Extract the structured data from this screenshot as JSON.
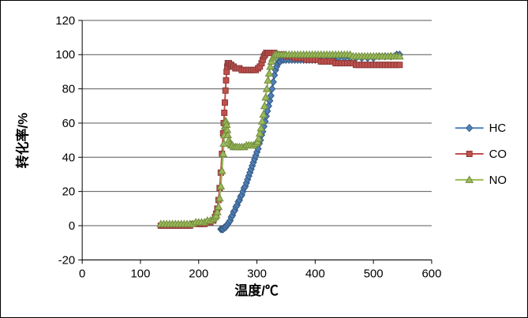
{
  "frame": {
    "background": "#FFFFFF",
    "border_color": "#000000"
  },
  "chart_data": {
    "type": "line",
    "title": "",
    "xlabel": "温度/℃",
    "ylabel": "转化率/%",
    "xlim": [
      0,
      600
    ],
    "ylim": [
      -20,
      120
    ],
    "xtick_step": 100,
    "ytick_step": 20,
    "grid": "horizontal",
    "gridline_color": "#595959",
    "axis_color": "#000000",
    "legend_position": "right",
    "series": [
      {
        "name": "HC",
        "color": "#4F81BD",
        "edge": "#36597F",
        "marker": "diamond",
        "points": [
          [
            238,
            -2
          ],
          [
            240,
            -2
          ],
          [
            242,
            -2
          ],
          [
            244,
            -1
          ],
          [
            246,
            -1
          ],
          [
            248,
            0
          ],
          [
            250,
            1
          ],
          [
            252,
            2
          ],
          [
            254,
            3
          ],
          [
            256,
            5
          ],
          [
            258,
            6
          ],
          [
            260,
            8
          ],
          [
            262,
            9
          ],
          [
            264,
            11
          ],
          [
            266,
            12
          ],
          [
            268,
            14
          ],
          [
            270,
            15
          ],
          [
            272,
            17
          ],
          [
            274,
            18
          ],
          [
            276,
            20
          ],
          [
            278,
            22
          ],
          [
            280,
            23
          ],
          [
            282,
            25
          ],
          [
            284,
            27
          ],
          [
            286,
            29
          ],
          [
            288,
            31
          ],
          [
            290,
            33
          ],
          [
            292,
            35
          ],
          [
            294,
            37
          ],
          [
            296,
            39
          ],
          [
            298,
            41
          ],
          [
            300,
            43
          ],
          [
            302,
            45
          ],
          [
            304,
            48
          ],
          [
            306,
            50
          ],
          [
            308,
            53
          ],
          [
            310,
            55
          ],
          [
            312,
            58
          ],
          [
            314,
            61
          ],
          [
            316,
            64
          ],
          [
            318,
            67
          ],
          [
            320,
            70
          ],
          [
            322,
            73
          ],
          [
            324,
            76
          ],
          [
            326,
            80
          ],
          [
            328,
            84
          ],
          [
            330,
            88
          ],
          [
            332,
            91
          ],
          [
            334,
            93
          ],
          [
            336,
            95
          ],
          [
            338,
            96
          ],
          [
            340,
            96
          ],
          [
            343,
            97
          ],
          [
            346,
            97
          ],
          [
            350,
            97
          ],
          [
            355,
            97
          ],
          [
            360,
            97
          ],
          [
            365,
            97
          ],
          [
            370,
            97
          ],
          [
            375,
            97
          ],
          [
            380,
            97
          ],
          [
            385,
            97
          ],
          [
            390,
            97
          ],
          [
            395,
            97
          ],
          [
            400,
            97
          ],
          [
            410,
            97
          ],
          [
            420,
            97
          ],
          [
            430,
            97
          ],
          [
            440,
            98
          ],
          [
            450,
            98
          ],
          [
            460,
            98
          ],
          [
            470,
            98
          ],
          [
            480,
            98
          ],
          [
            490,
            98
          ],
          [
            500,
            98
          ],
          [
            510,
            99
          ],
          [
            520,
            99
          ],
          [
            530,
            99
          ],
          [
            540,
            100
          ],
          [
            545,
            100
          ]
        ]
      },
      {
        "name": "CO",
        "color": "#C0504D",
        "edge": "#8A3A38",
        "marker": "square",
        "points": [
          [
            135,
            0
          ],
          [
            140,
            0
          ],
          [
            145,
            0
          ],
          [
            150,
            0
          ],
          [
            155,
            0
          ],
          [
            160,
            0
          ],
          [
            165,
            0
          ],
          [
            170,
            0
          ],
          [
            175,
            0
          ],
          [
            180,
            0
          ],
          [
            185,
            0
          ],
          [
            190,
            1
          ],
          [
            195,
            1
          ],
          [
            200,
            1
          ],
          [
            205,
            1
          ],
          [
            210,
            1
          ],
          [
            215,
            2
          ],
          [
            220,
            2
          ],
          [
            225,
            3
          ],
          [
            228,
            5
          ],
          [
            230,
            7
          ],
          [
            232,
            10
          ],
          [
            234,
            15
          ],
          [
            236,
            22
          ],
          [
            238,
            31
          ],
          [
            240,
            42
          ],
          [
            242,
            54
          ],
          [
            243,
            60
          ],
          [
            244,
            66
          ],
          [
            245,
            72
          ],
          [
            246,
            79
          ],
          [
            247,
            85
          ],
          [
            248,
            90
          ],
          [
            249,
            93
          ],
          [
            250,
            95
          ],
          [
            252,
            95
          ],
          [
            254,
            94
          ],
          [
            256,
            94
          ],
          [
            258,
            93
          ],
          [
            260,
            93
          ],
          [
            263,
            92
          ],
          [
            266,
            92
          ],
          [
            270,
            92
          ],
          [
            274,
            91
          ],
          [
            278,
            91
          ],
          [
            282,
            91
          ],
          [
            286,
            91
          ],
          [
            290,
            91
          ],
          [
            294,
            91
          ],
          [
            298,
            91
          ],
          [
            302,
            92
          ],
          [
            305,
            93
          ],
          [
            308,
            95
          ],
          [
            310,
            97
          ],
          [
            312,
            99
          ],
          [
            314,
            100
          ],
          [
            316,
            101
          ],
          [
            318,
            101
          ],
          [
            320,
            101
          ],
          [
            323,
            101
          ],
          [
            326,
            101
          ],
          [
            330,
            101
          ],
          [
            334,
            100
          ],
          [
            338,
            100
          ],
          [
            342,
            100
          ],
          [
            346,
            100
          ],
          [
            350,
            99
          ],
          [
            355,
            99
          ],
          [
            360,
            99
          ],
          [
            365,
            98
          ],
          [
            370,
            98
          ],
          [
            375,
            98
          ],
          [
            380,
            98
          ],
          [
            385,
            97
          ],
          [
            390,
            97
          ],
          [
            395,
            97
          ],
          [
            400,
            97
          ],
          [
            405,
            97
          ],
          [
            410,
            96
          ],
          [
            415,
            96
          ],
          [
            420,
            96
          ],
          [
            425,
            96
          ],
          [
            430,
            96
          ],
          [
            435,
            95
          ],
          [
            440,
            95
          ],
          [
            445,
            95
          ],
          [
            450,
            95
          ],
          [
            455,
            95
          ],
          [
            460,
            95
          ],
          [
            465,
            95
          ],
          [
            470,
            94
          ],
          [
            475,
            94
          ],
          [
            480,
            94
          ],
          [
            485,
            94
          ],
          [
            490,
            94
          ],
          [
            495,
            94
          ],
          [
            500,
            94
          ],
          [
            505,
            94
          ],
          [
            510,
            94
          ],
          [
            515,
            94
          ],
          [
            520,
            94
          ],
          [
            525,
            94
          ],
          [
            530,
            94
          ],
          [
            535,
            94
          ],
          [
            540,
            94
          ],
          [
            545,
            94
          ]
        ]
      },
      {
        "name": "NO",
        "color": "#9BBB59",
        "edge": "#6F8A3B",
        "marker": "triangle",
        "points": [
          [
            135,
            1
          ],
          [
            140,
            1
          ],
          [
            145,
            1
          ],
          [
            150,
            1
          ],
          [
            155,
            1
          ],
          [
            160,
            1
          ],
          [
            165,
            1
          ],
          [
            170,
            1
          ],
          [
            175,
            1
          ],
          [
            180,
            1
          ],
          [
            185,
            1
          ],
          [
            190,
            1
          ],
          [
            195,
            2
          ],
          [
            200,
            2
          ],
          [
            205,
            2
          ],
          [
            210,
            2
          ],
          [
            215,
            3
          ],
          [
            220,
            3
          ],
          [
            225,
            4
          ],
          [
            228,
            5
          ],
          [
            230,
            6
          ],
          [
            232,
            8
          ],
          [
            234,
            11
          ],
          [
            236,
            16
          ],
          [
            238,
            23
          ],
          [
            240,
            32
          ],
          [
            242,
            42
          ],
          [
            243,
            48
          ],
          [
            244,
            53
          ],
          [
            245,
            58
          ],
          [
            246,
            61
          ],
          [
            247,
            61
          ],
          [
            248,
            59
          ],
          [
            249,
            56
          ],
          [
            250,
            53
          ],
          [
            252,
            50
          ],
          [
            254,
            48
          ],
          [
            256,
            47
          ],
          [
            258,
            47
          ],
          [
            260,
            46
          ],
          [
            263,
            46
          ],
          [
            266,
            46
          ],
          [
            270,
            46
          ],
          [
            274,
            46
          ],
          [
            278,
            46
          ],
          [
            282,
            47
          ],
          [
            286,
            47
          ],
          [
            290,
            47
          ],
          [
            294,
            47
          ],
          [
            298,
            48
          ],
          [
            301,
            49
          ],
          [
            303,
            51
          ],
          [
            305,
            54
          ],
          [
            307,
            57
          ],
          [
            309,
            61
          ],
          [
            311,
            65
          ],
          [
            313,
            70
          ],
          [
            315,
            75
          ],
          [
            317,
            80
          ],
          [
            319,
            85
          ],
          [
            321,
            89
          ],
          [
            323,
            93
          ],
          [
            325,
            96
          ],
          [
            327,
            98
          ],
          [
            329,
            99
          ],
          [
            331,
            100
          ],
          [
            334,
            100
          ],
          [
            338,
            100
          ],
          [
            342,
            100
          ],
          [
            346,
            100
          ],
          [
            350,
            100
          ],
          [
            355,
            100
          ],
          [
            360,
            100
          ],
          [
            365,
            100
          ],
          [
            370,
            100
          ],
          [
            375,
            100
          ],
          [
            380,
            100
          ],
          [
            385,
            100
          ],
          [
            390,
            100
          ],
          [
            395,
            100
          ],
          [
            400,
            100
          ],
          [
            405,
            100
          ],
          [
            410,
            100
          ],
          [
            415,
            100
          ],
          [
            420,
            100
          ],
          [
            425,
            100
          ],
          [
            430,
            100
          ],
          [
            435,
            100
          ],
          [
            440,
            100
          ],
          [
            445,
            100
          ],
          [
            450,
            100
          ],
          [
            455,
            100
          ],
          [
            460,
            100
          ],
          [
            465,
            99
          ],
          [
            470,
            99
          ],
          [
            475,
            99
          ],
          [
            480,
            99
          ],
          [
            485,
            99
          ],
          [
            490,
            99
          ],
          [
            495,
            99
          ],
          [
            500,
            99
          ],
          [
            505,
            99
          ],
          [
            510,
            99
          ],
          [
            515,
            99
          ],
          [
            520,
            99
          ],
          [
            525,
            99
          ],
          [
            530,
            99
          ],
          [
            535,
            99
          ],
          [
            540,
            99
          ],
          [
            545,
            99
          ]
        ]
      }
    ]
  },
  "legend": {
    "items": [
      {
        "label": "HC"
      },
      {
        "label": "CO"
      },
      {
        "label": "NO"
      }
    ]
  }
}
